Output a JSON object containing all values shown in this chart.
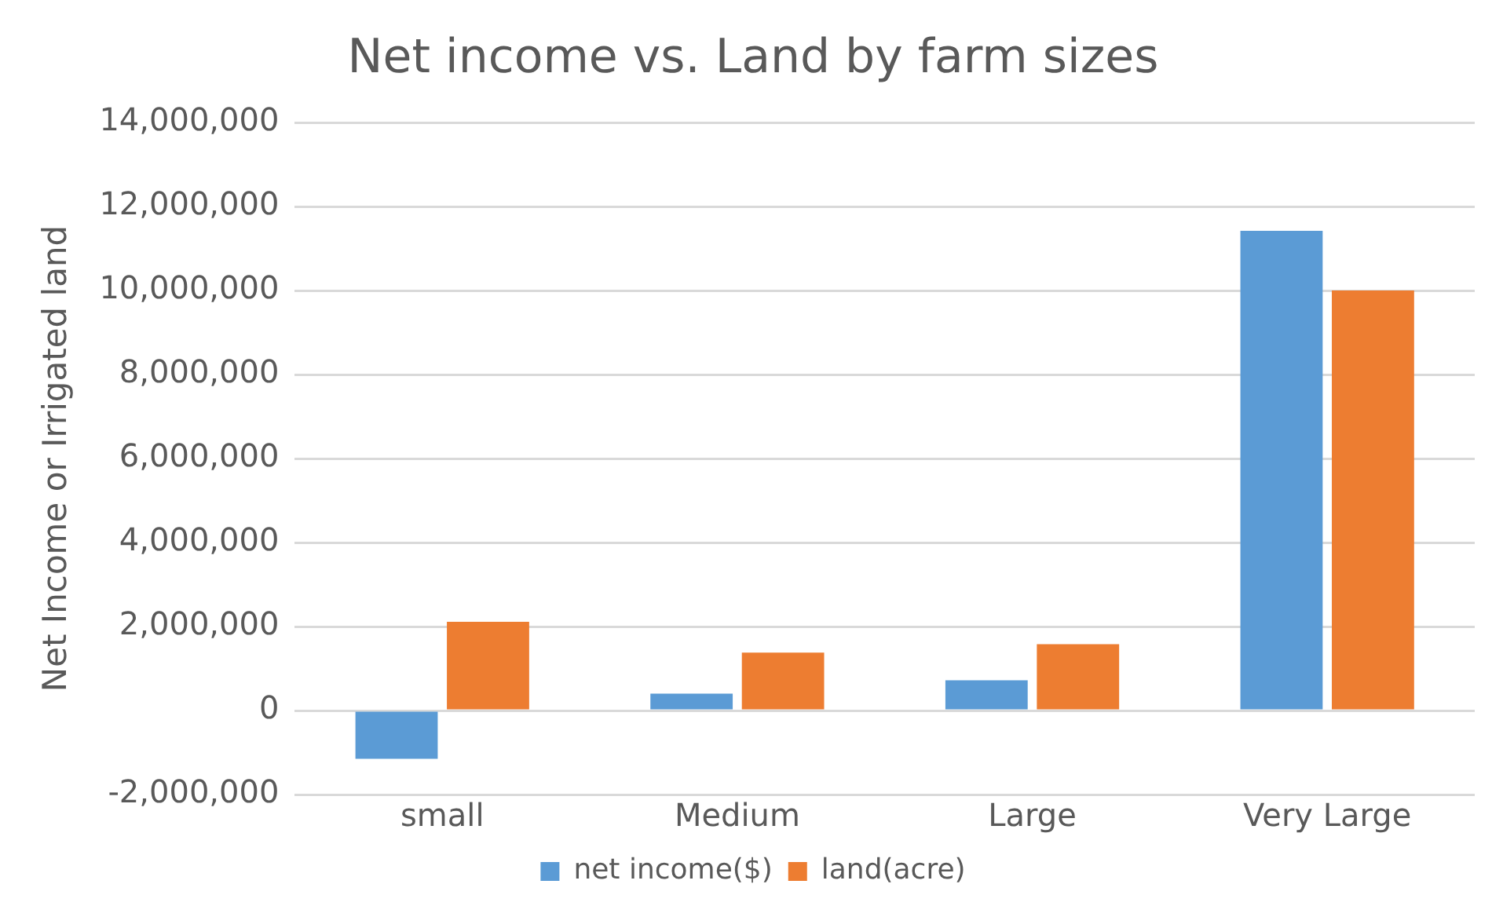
{
  "chart_data": {
    "type": "bar",
    "title": "Net income vs. Land by farm sizes",
    "ylabel": "Net Income or Irrigated land",
    "categories": [
      "small",
      "Medium",
      "Large",
      "Very Large"
    ],
    "series": [
      {
        "name": "net income($)",
        "color": "#5b9bd5",
        "values": [
          -1150000,
          400000,
          720000,
          11420000
        ]
      },
      {
        "name": "land(acre)",
        "color": "#ed7d31",
        "values": [
          2110000,
          1380000,
          1580000,
          10000000
        ]
      }
    ],
    "ylim": [
      -2000000,
      14000000
    ],
    "yticks": [
      {
        "value": -2000000,
        "label": "-2,000,000"
      },
      {
        "value": 0,
        "label": "0"
      },
      {
        "value": 2000000,
        "label": "2,000,000"
      },
      {
        "value": 4000000,
        "label": "4,000,000"
      },
      {
        "value": 6000000,
        "label": "6,000,000"
      },
      {
        "value": 8000000,
        "label": "8,000,000"
      },
      {
        "value": 10000000,
        "label": "10,000,000"
      },
      {
        "value": 12000000,
        "label": "12,000,000"
      },
      {
        "value": 14000000,
        "label": "14,000,000"
      }
    ],
    "grid": "y",
    "legend": "bottom"
  }
}
